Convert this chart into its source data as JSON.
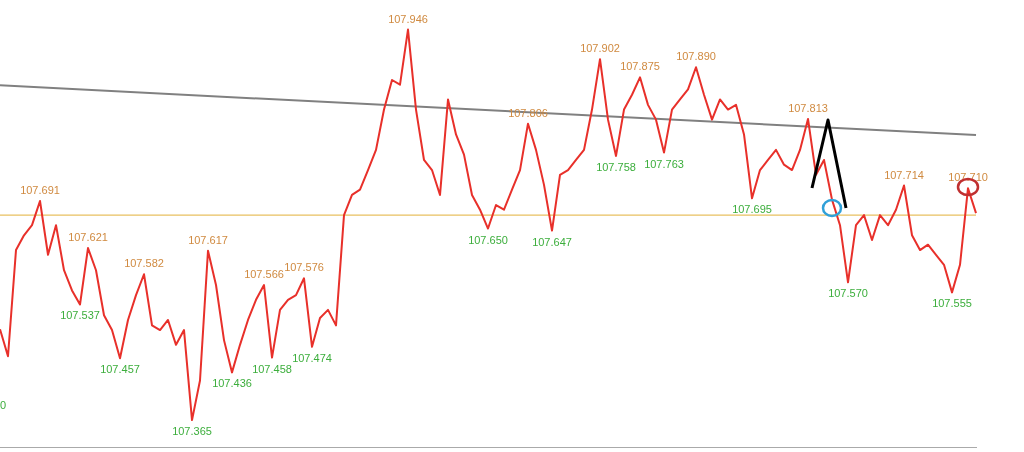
{
  "chart_data": {
    "type": "line",
    "categories": [
      null,
      null,
      null,
      null,
      null,
      null,
      null,
      null,
      null,
      null,
      null,
      null,
      null,
      null,
      null,
      null,
      null,
      null,
      null,
      null,
      null,
      null,
      null,
      null,
      null,
      null,
      null,
      null,
      null,
      null,
      null,
      null,
      null,
      null,
      null,
      null,
      null,
      null,
      null,
      null,
      null,
      null,
      null,
      null,
      null,
      null,
      null,
      null,
      null,
      null,
      null,
      null,
      null,
      null,
      null,
      null,
      null,
      null,
      null,
      null,
      null,
      null,
      null,
      null,
      null,
      null,
      null,
      null,
      null,
      null,
      null,
      null,
      null,
      null,
      null,
      null,
      null,
      null,
      null,
      null,
      null,
      null,
      null,
      null,
      null,
      null,
      null,
      null,
      null,
      null,
      null,
      null,
      null,
      null,
      null,
      null,
      null,
      null,
      null,
      null,
      null,
      null,
      null,
      null,
      null,
      null,
      null,
      null,
      null,
      null,
      null,
      null,
      null,
      null,
      null,
      null,
      null,
      null,
      null,
      null,
      null,
      null,
      null
    ],
    "series": [
      {
        "color": "#e8302a",
        "values": [
          107.5,
          107.46,
          107.618,
          107.64,
          107.655,
          107.691,
          107.611,
          107.655,
          107.588,
          107.558,
          107.537,
          107.621,
          107.588,
          107.521,
          107.499,
          107.457,
          107.514,
          107.551,
          107.582,
          107.506,
          107.499,
          107.514,
          107.477,
          107.499,
          107.365,
          107.424,
          107.617,
          107.566,
          107.484,
          107.436,
          107.477,
          107.514,
          107.544,
          107.566,
          107.458,
          107.529,
          107.544,
          107.551,
          107.576,
          107.474,
          107.517,
          107.529,
          107.506,
          107.67,
          107.7,
          107.708,
          107.737,
          107.767,
          107.827,
          107.871,
          107.864,
          107.946,
          107.827,
          107.752,
          107.737,
          107.7,
          107.842,
          107.79,
          107.76,
          107.7,
          107.678,
          107.65,
          107.685,
          107.678,
          107.708,
          107.737,
          107.806,
          107.767,
          107.715,
          107.647,
          107.73,
          107.737,
          107.752,
          107.767,
          107.827,
          107.902,
          107.812,
          107.758,
          107.827,
          107.849,
          107.875,
          107.834,
          107.812,
          107.763,
          107.827,
          107.842,
          107.857,
          107.89,
          107.849,
          107.812,
          107.842,
          107.827,
          107.834,
          107.79,
          107.695,
          107.737,
          107.752,
          107.767,
          107.745,
          107.737,
          107.767,
          107.813,
          107.73,
          107.752,
          107.693,
          107.655,
          107.57,
          107.655,
          107.67,
          107.633,
          107.67,
          107.655,
          107.678,
          107.714,
          107.64,
          107.618,
          107.626,
          107.611,
          107.596,
          107.555,
          107.596,
          107.71,
          107.673
        ],
        "value_labels": [
          null,
          null,
          null,
          null,
          null,
          "107.691",
          null,
          null,
          null,
          null,
          "107.537",
          "107.621",
          null,
          null,
          null,
          "107.457",
          null,
          null,
          "107.582",
          null,
          null,
          null,
          null,
          null,
          "107.365",
          null,
          "107.617",
          null,
          null,
          "107.436",
          null,
          null,
          null,
          "107.566",
          "107.458",
          null,
          null,
          null,
          "107.576",
          "107.474",
          null,
          null,
          null,
          null,
          null,
          null,
          null,
          null,
          null,
          null,
          null,
          "107.946",
          null,
          null,
          null,
          null,
          null,
          null,
          null,
          null,
          null,
          "107.650",
          null,
          null,
          null,
          null,
          "107.806",
          null,
          null,
          "107.647",
          null,
          null,
          null,
          null,
          null,
          "107.902",
          null,
          "107.758",
          null,
          null,
          "107.875",
          null,
          null,
          "107.763",
          null,
          null,
          null,
          "107.890",
          null,
          null,
          null,
          null,
          null,
          null,
          "107.695",
          null,
          null,
          null,
          null,
          null,
          null,
          "107.813",
          null,
          null,
          null,
          null,
          "107.570",
          null,
          null,
          null,
          null,
          null,
          null,
          "107.714",
          null,
          null,
          null,
          null,
          null,
          "107.555",
          null,
          "107.710",
          null
        ]
      },
      {
        "color": "#808080",
        "values": [
          107.863,
          null,
          null,
          null,
          null,
          null,
          null,
          null,
          null,
          null,
          null,
          null,
          null,
          null,
          null,
          null,
          null,
          null,
          null,
          null,
          null,
          null,
          null,
          null,
          null,
          null,
          null,
          null,
          null,
          null,
          null,
          null,
          null,
          null,
          null,
          null,
          null,
          null,
          null,
          null,
          null,
          null,
          null,
          null,
          null,
          null,
          null,
          null,
          null,
          null,
          null,
          null,
          null,
          null,
          null,
          null,
          null,
          null,
          null,
          null,
          null,
          null,
          null,
          null,
          null,
          null,
          null,
          null,
          null,
          null,
          null,
          null,
          null,
          null,
          null,
          null,
          null,
          null,
          null,
          null,
          null,
          null,
          null,
          null,
          null,
          null,
          null,
          null,
          null,
          null,
          null,
          null,
          null,
          null,
          null,
          null,
          null,
          null,
          null,
          null,
          null,
          null,
          null,
          null,
          null,
          null,
          null,
          null,
          null,
          null,
          null,
          null,
          null,
          null,
          null,
          null,
          null,
          null,
          null,
          null,
          null,
          null,
          107.789
        ]
      }
    ],
    "ylim": [
      107.325,
      107.99
    ],
    "ref_lines": [
      {
        "axis": "y",
        "value": 107.67,
        "color": "#e8c060"
      }
    ],
    "annotations": [
      "0"
    ],
    "tick_labels": false,
    "legend": false,
    "grid": false,
    "marker": "none"
  }
}
